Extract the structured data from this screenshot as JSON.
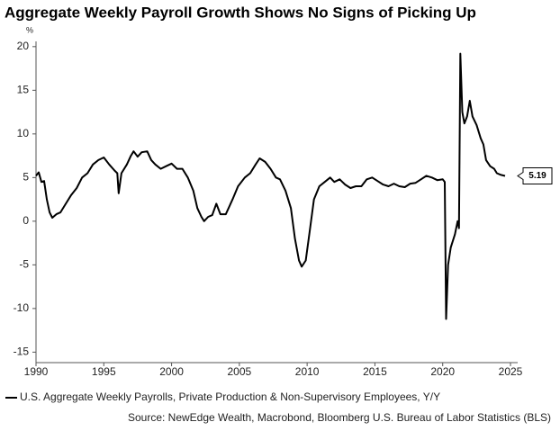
{
  "chart_data": {
    "type": "line",
    "title": "Aggregate Weekly Payroll Growth Shows No Signs of Picking Up",
    "y_unit": "%",
    "source": "Source: NewEdge Wealth, Macrobond, Bloomberg U.S. Bureau of Labor Statistics (BLS)",
    "x": [
      1990.0,
      1990.2,
      1990.4,
      1990.6,
      1990.8,
      1991.0,
      1991.2,
      1991.5,
      1991.8,
      1992.2,
      1992.6,
      1993.0,
      1993.4,
      1993.8,
      1994.2,
      1994.6,
      1995.0,
      1995.4,
      1995.8,
      1996.0,
      1996.1,
      1996.3,
      1996.7,
      1997.0,
      1997.2,
      1997.5,
      1997.8,
      1998.2,
      1998.5,
      1998.8,
      1999.2,
      1999.6,
      2000.0,
      2000.4,
      2000.8,
      2001.2,
      2001.6,
      2001.9,
      2002.2,
      2002.4,
      2002.7,
      2003.0,
      2003.3,
      2003.6,
      2004.0,
      2004.5,
      2004.9,
      2005.4,
      2005.8,
      2006.2,
      2006.5,
      2006.9,
      2007.3,
      2007.7,
      2008.0,
      2008.4,
      2008.8,
      2009.1,
      2009.4,
      2009.6,
      2009.9,
      2010.2,
      2010.5,
      2010.9,
      2011.3,
      2011.7,
      2012.0,
      2012.4,
      2012.8,
      2013.2,
      2013.6,
      2014.0,
      2014.4,
      2014.8,
      2015.2,
      2015.6,
      2016.0,
      2016.4,
      2016.8,
      2017.2,
      2017.6,
      2018.0,
      2018.4,
      2018.8,
      2019.2,
      2019.6,
      2020.0,
      2020.15,
      2020.25,
      2020.4,
      2020.6,
      2020.9,
      2021.1,
      2021.2,
      2021.3,
      2021.45,
      2021.6,
      2021.8,
      2022.0,
      2022.2,
      2022.5,
      2022.8,
      2023.0,
      2023.2,
      2023.5,
      2023.8,
      2024.0,
      2024.3,
      2024.6
    ],
    "series": [
      {
        "name": "U.S. Aggregate Weekly Payrolls, Private Production & Non-Supervisory Employees, Y/Y",
        "color": "#000000",
        "values": [
          5.2,
          5.6,
          4.5,
          4.6,
          2.5,
          1.0,
          0.4,
          0.8,
          1.0,
          2.0,
          3.0,
          3.8,
          5.0,
          5.5,
          6.5,
          7.0,
          7.3,
          6.5,
          5.8,
          5.5,
          3.2,
          5.5,
          6.5,
          7.5,
          8.0,
          7.4,
          7.9,
          8.0,
          7.0,
          6.5,
          6.0,
          6.3,
          6.6,
          6.0,
          6.0,
          5.0,
          3.5,
          1.5,
          0.5,
          0.0,
          0.5,
          0.7,
          2.0,
          0.8,
          0.8,
          2.5,
          4.0,
          5.0,
          5.5,
          6.5,
          7.2,
          6.8,
          6.0,
          5.0,
          4.8,
          3.5,
          1.5,
          -2.0,
          -4.5,
          -5.2,
          -4.5,
          -1.0,
          2.5,
          4.0,
          4.5,
          5.0,
          4.5,
          4.8,
          4.2,
          3.8,
          4.0,
          4.0,
          4.8,
          5.0,
          4.6,
          4.2,
          4.0,
          4.3,
          4.0,
          3.9,
          4.3,
          4.4,
          4.8,
          5.2,
          5.0,
          4.7,
          4.8,
          4.5,
          -11.2,
          -5.0,
          -3.0,
          -1.5,
          0.0,
          -0.8,
          19.2,
          12.5,
          11.2,
          12.0,
          13.8,
          12.0,
          11.0,
          9.5,
          8.8,
          7.0,
          6.3,
          6.0,
          5.5,
          5.3,
          5.19
        ]
      }
    ],
    "xlim": [
      1990,
      2025
    ],
    "xticks": [
      1990,
      1995,
      2000,
      2005,
      2010,
      2015,
      2020,
      2025
    ],
    "ylim": [
      -16.2,
      20.6
    ],
    "yticks": [
      -15,
      -10,
      -5,
      0,
      5,
      10,
      15,
      20
    ],
    "grid": false
  }
}
